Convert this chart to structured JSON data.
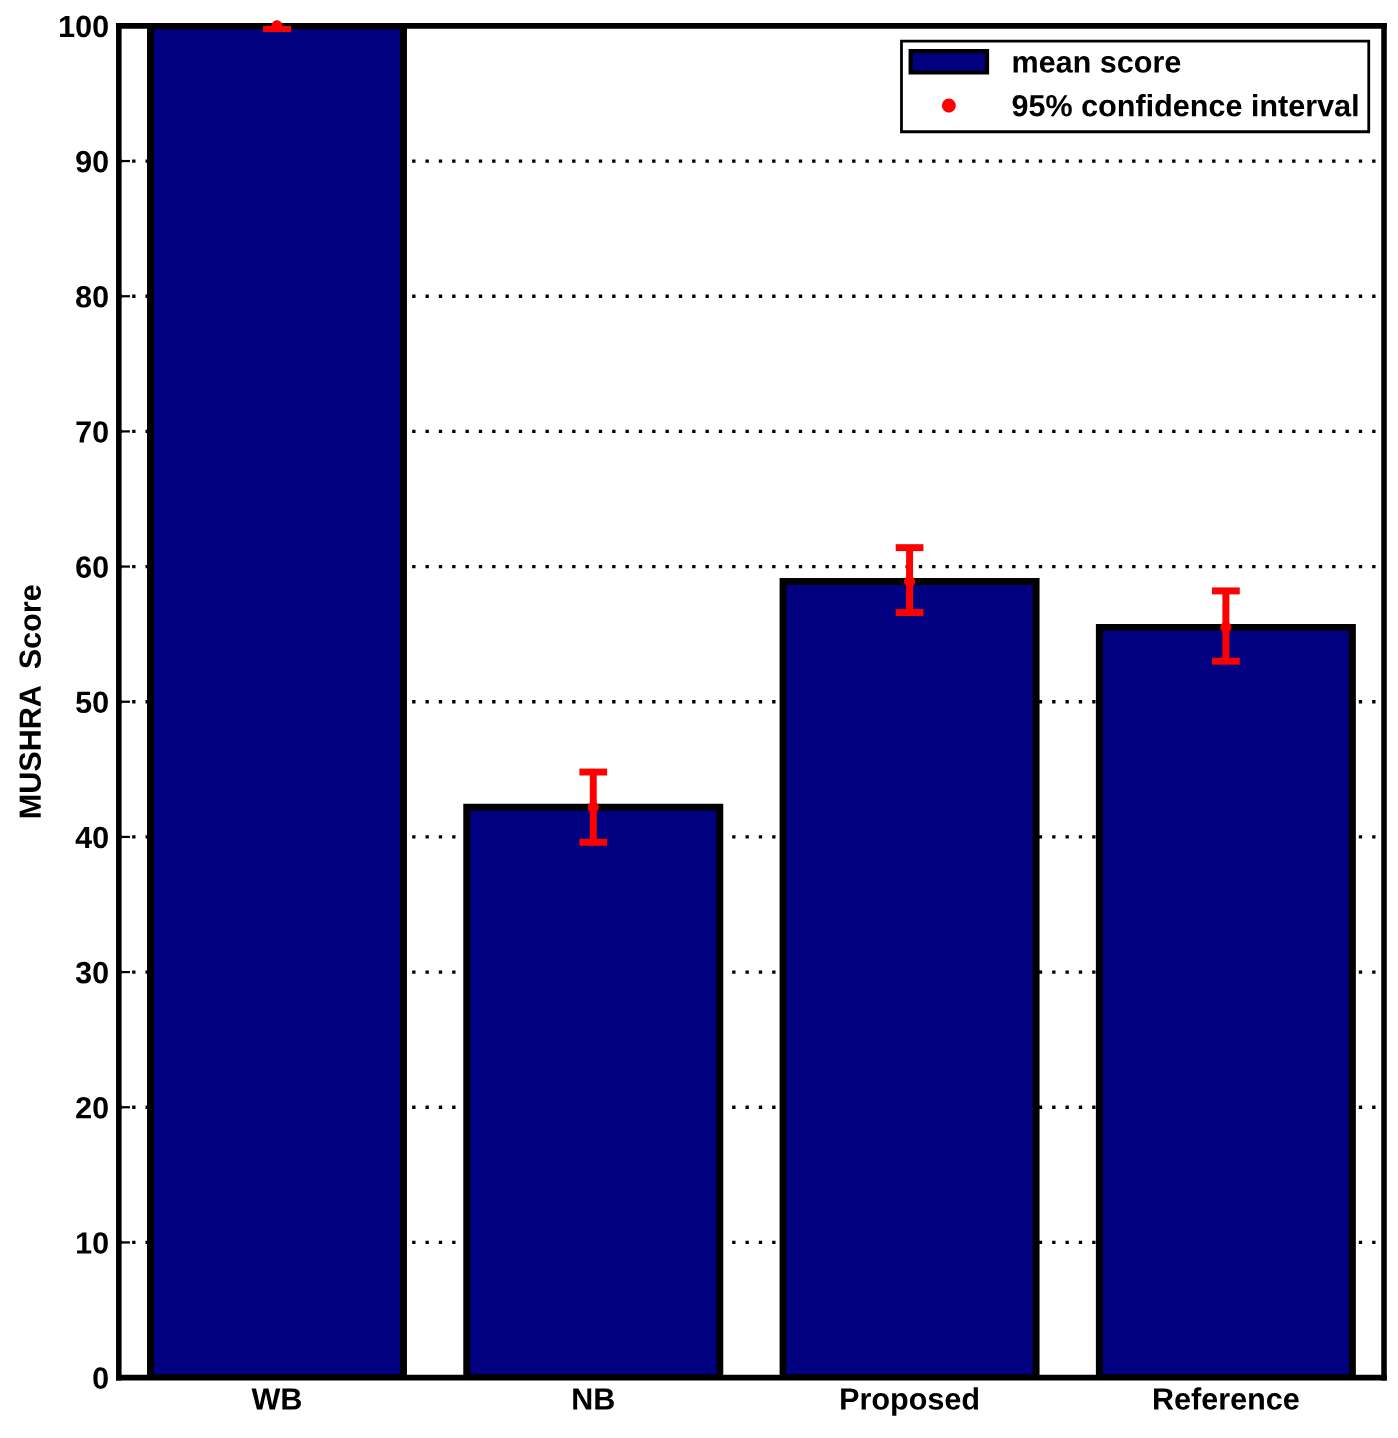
{
  "chart_data": {
    "type": "bar",
    "ylabel": "MUSHRA  Score",
    "categories": [
      "WB",
      "NB",
      "Proposed",
      "Reference"
    ],
    "series": [
      {
        "name": "mean score",
        "color": "#000080",
        "values": [
          100,
          42.2,
          58.9,
          55.5
        ]
      },
      {
        "name": "95% confidence interval",
        "type": "scatter",
        "marker": "circle",
        "color": "#ff0000",
        "values": [
          100,
          42.2,
          58.9,
          55.5
        ],
        "errors": [
          [
            99.8,
            100
          ],
          [
            39.6,
            44.8
          ],
          [
            56.6,
            61.4
          ],
          [
            53.0,
            58.2
          ]
        ]
      }
    ],
    "ylim": [
      0,
      100
    ],
    "yticks": [
      0,
      10,
      20,
      30,
      40,
      50,
      60,
      70,
      80,
      90,
      100
    ],
    "grid": "y",
    "legend": "top right"
  }
}
